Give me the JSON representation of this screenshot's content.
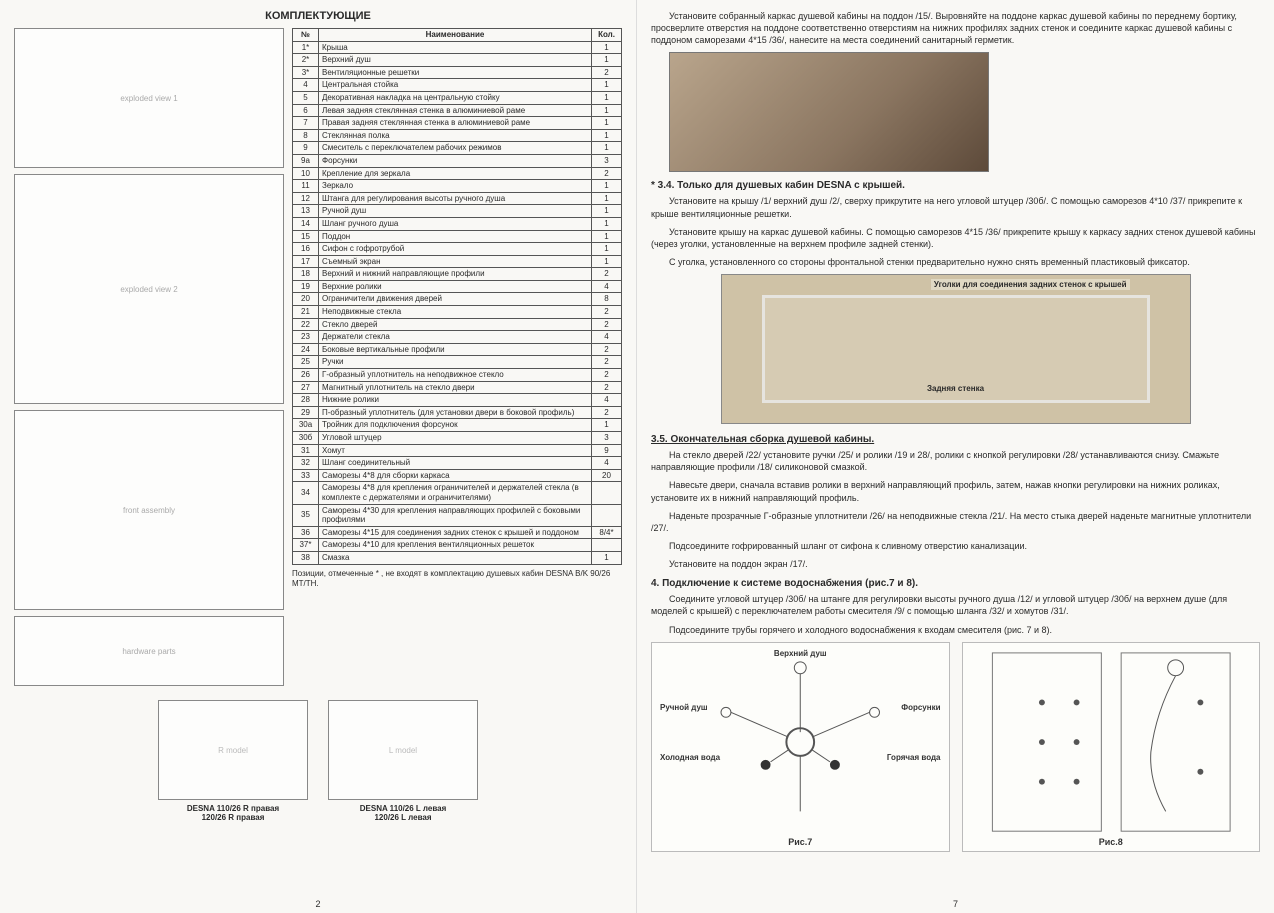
{
  "left": {
    "title": "КОМПЛЕКТУЮЩИЕ",
    "headers": {
      "num": "№",
      "name": "Наименование",
      "qty": "Кол."
    },
    "rows": [
      {
        "n": "1*",
        "name": "Крыша",
        "q": "1"
      },
      {
        "n": "2*",
        "name": "Верхний душ",
        "q": "1"
      },
      {
        "n": "3*",
        "name": "Вентиляционные решетки",
        "q": "2"
      },
      {
        "n": "4",
        "name": "Центральная стойка",
        "q": "1"
      },
      {
        "n": "5",
        "name": "Декоративная накладка на центральную стойку",
        "q": "1"
      },
      {
        "n": "6",
        "name": "Левая задняя стеклянная стенка в алюминиевой раме",
        "q": "1"
      },
      {
        "n": "7",
        "name": "Правая задняя стеклянная стенка в алюминиевой раме",
        "q": "1"
      },
      {
        "n": "8",
        "name": "Стеклянная полка",
        "q": "1"
      },
      {
        "n": "9",
        "name": "Смеситель с переключателем рабочих режимов",
        "q": "1"
      },
      {
        "n": "9а",
        "name": "Форсунки",
        "q": "3"
      },
      {
        "n": "10",
        "name": "Крепление для зеркала",
        "q": "2"
      },
      {
        "n": "11",
        "name": "Зеркало",
        "q": "1"
      },
      {
        "n": "12",
        "name": "Штанга для регулирования высоты ручного душа",
        "q": "1"
      },
      {
        "n": "13",
        "name": "Ручной душ",
        "q": "1"
      },
      {
        "n": "14",
        "name": "Шланг ручного душа",
        "q": "1"
      },
      {
        "n": "15",
        "name": "Поддон",
        "q": "1"
      },
      {
        "n": "16",
        "name": "Сифон с гофротрубой",
        "q": "1"
      },
      {
        "n": "17",
        "name": "Съемный экран",
        "q": "1"
      },
      {
        "n": "18",
        "name": "Верхний и нижний направляющие профили",
        "q": "2"
      },
      {
        "n": "19",
        "name": "Верхние ролики",
        "q": "4"
      },
      {
        "n": "20",
        "name": "Ограничители движения дверей",
        "q": "8"
      },
      {
        "n": "21",
        "name": "Неподвижные стекла",
        "q": "2"
      },
      {
        "n": "22",
        "name": "Стекло дверей",
        "q": "2"
      },
      {
        "n": "23",
        "name": "Держатели стекла",
        "q": "4"
      },
      {
        "n": "24",
        "name": "Боковые вертикальные профили",
        "q": "2"
      },
      {
        "n": "25",
        "name": "Ручки",
        "q": "2"
      },
      {
        "n": "26",
        "name": "Г-образный уплотнитель на неподвижное стекло",
        "q": "2"
      },
      {
        "n": "27",
        "name": "Магнитный уплотнитель на стекло двери",
        "q": "2"
      },
      {
        "n": "28",
        "name": "Нижние ролики",
        "q": "4"
      },
      {
        "n": "29",
        "name": "П-образный уплотнитель (для установки двери в боковой профиль)",
        "q": "2"
      },
      {
        "n": "30а",
        "name": "Тройник для подключения форсунок",
        "q": "1"
      },
      {
        "n": "30б",
        "name": "Угловой штуцер",
        "q": "3"
      },
      {
        "n": "31",
        "name": "Хомут",
        "q": "9"
      },
      {
        "n": "32",
        "name": "Шланг соединительный",
        "q": "4"
      },
      {
        "n": "33",
        "name": "Саморезы 4*8 для сборки каркаса",
        "q": "20"
      },
      {
        "n": "34",
        "name": "Саморезы 4*8 для крепления ограничителей и держателей стекла (в комплекте с держателями и ограничителями)",
        "q": ""
      },
      {
        "n": "35",
        "name": "Саморезы 4*30 для крепления направляющих профилей с боковыми профилями",
        "q": ""
      },
      {
        "n": "36",
        "name": "Саморезы 4*15 для соединения задних стенок с крышей и поддоном",
        "q": "8/4*"
      },
      {
        "n": "37*",
        "name": "Саморезы 4*10 для крепления вентиляционных решеток",
        "q": ""
      },
      {
        "n": "38",
        "name": "Смазка",
        "q": "1"
      }
    ],
    "footnote": "Позиции, отмеченные * , не входят в комплектацию душевых кабин DESNA B/K 90/26 MT/TH.",
    "model_r1": "DESNA 110/26 R правая",
    "model_r2": "120/26 R правая",
    "model_l1": "DESNA 110/26 L левая",
    "model_l2": "120/26 L левая",
    "pagenum": "2"
  },
  "right": {
    "p1": "Установите собранный каркас душевой кабины на поддон /15/. Выровняйте на поддоне каркас душевой кабины по переднему бортику, просверлите отверстия на поддоне соответственно отверстиям на нижних профилях задних стенок и соедините каркас душевой кабины с поддоном саморезами 4*15 /36/, нанесите на места соединений санитарный герметик.",
    "h34": "* 3.4. Только для душевых кабин DESNA с крышей.",
    "p34a": "Установите на крышу /1/ верхний душ /2/, сверху прикрутите на него угловой штуцер /30б/. С помощью саморезов 4*10 /37/ прикрепите к крыше вентиляционные решетки.",
    "p34b": "Установите крышу на каркас душевой кабины. С помощью саморезов 4*15 /36/ прикрепите крышу к каркасу задних стенок душевой кабины (через уголки, установленные на верхнем профиле задней стенки).",
    "p34c": "С уголка, установленного со стороны фронтальной стенки предварительно нужно снять временный пластиковый фиксатор.",
    "photo2_label1": "Уголки для соединения задних стенок с крышей",
    "photo2_label2": "Задняя стенка",
    "h35": "3.5. Окончательная сборка душевой кабины.",
    "p35a": "На стекло дверей /22/ установите ручки /25/ и ролики /19 и 28/, ролики с кнопкой регулировки /28/ устанавливаются снизу. Смажьте направляющие профили /18/ силиконовой смазкой.",
    "p35b": "Навесьте двери, сначала вставив ролики в верхний направляющий профиль, затем, нажав кнопки регулировки на нижних роликах, установите их в нижний направляющий профиль.",
    "p35c": "Наденьте прозрачные Г-образные уплотнители /26/ на неподвижные стекла /21/. На место стыка дверей наденьте магнитные уплотнители /27/.",
    "p35d": "Подсоедините гофрированный шланг от сифона к сливному отверстию канализации.",
    "p35e": "Установите на поддон экран /17/.",
    "h4": "4. Подключение к системе водоснабжения (рис.7 и 8).",
    "p4a": "Соедините угловой штуцер /30б/ на штанге для регулировки высоты ручного душа /12/ и угловой штуцер /30б/ на верхнем душе (для моделей с крышей) с переключателем работы смесителя /9/ с помощью шланга /32/ и хомутов /31/.",
    "p4b": "Подсоедините трубы горячего и холодного водоснабжения к входам смесителя (рис. 7 и 8).",
    "schlab_top": "Верхний душ",
    "schlab_hand": "Ручной душ",
    "schlab_nozzle": "Форсунки",
    "schlab_cold": "Холодная вода",
    "schlab_hot": "Горячая вода",
    "fig7": "Рис.7",
    "fig8": "Рис.8",
    "pagenum": "7"
  }
}
